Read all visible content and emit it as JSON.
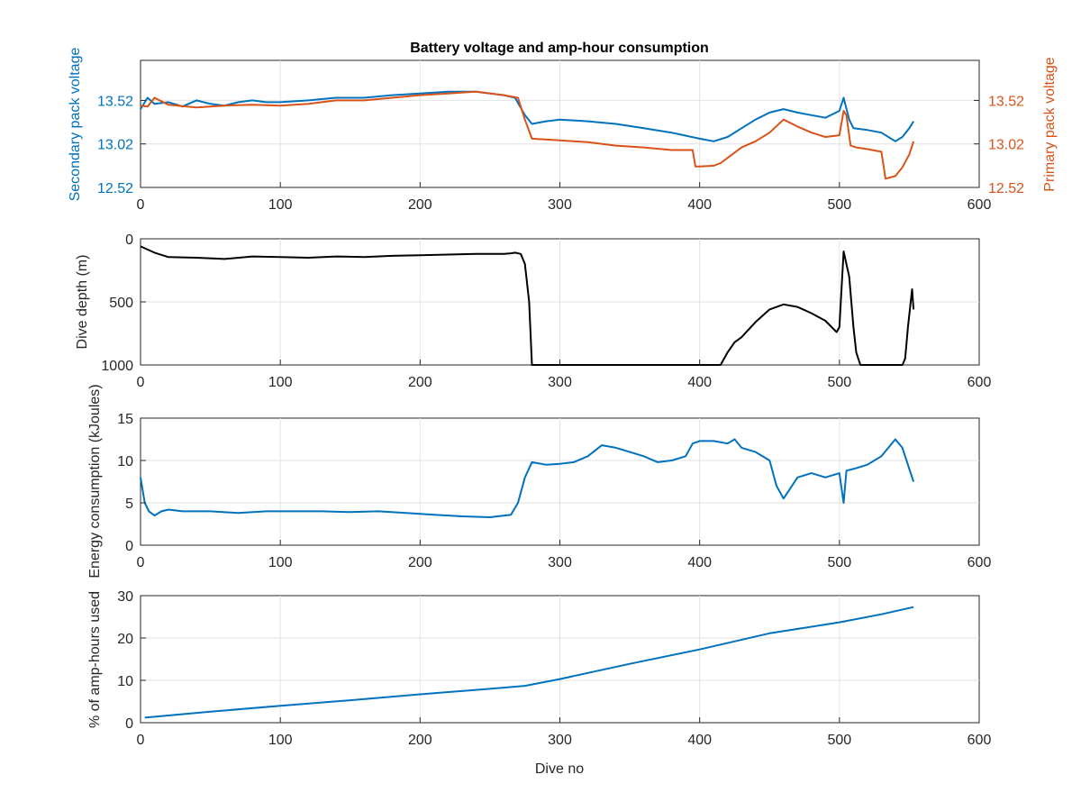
{
  "chart_data": [
    {
      "type": "line",
      "title": "Battery voltage and amp-hour consumption",
      "xlim": [
        0,
        600
      ],
      "xticks": [
        0,
        100,
        200,
        300,
        400,
        500,
        600
      ],
      "ylabel_left": "Secondary pack voltage",
      "ylabel_right": "Primary pack voltage",
      "ylim": [
        12.52,
        13.98
      ],
      "yticks_left": [
        12.52,
        13.02,
        13.52
      ],
      "yticks_right": [
        12.52,
        13.02,
        13.52
      ],
      "grid": true,
      "colors": {
        "secondary": "#0072bd",
        "primary": "#d95319"
      },
      "series": [
        {
          "name": "Secondary pack voltage",
          "axis": "left",
          "x": [
            0,
            5,
            10,
            20,
            30,
            40,
            50,
            60,
            70,
            80,
            90,
            100,
            120,
            140,
            160,
            180,
            200,
            220,
            240,
            260,
            268,
            275,
            280,
            290,
            300,
            320,
            340,
            360,
            380,
            400,
            410,
            420,
            430,
            440,
            450,
            460,
            470,
            480,
            490,
            500,
            503,
            507,
            510,
            520,
            530,
            540,
            545,
            550,
            553
          ],
          "y": [
            13.42,
            13.55,
            13.48,
            13.5,
            13.45,
            13.52,
            13.48,
            13.46,
            13.5,
            13.52,
            13.5,
            13.5,
            13.52,
            13.55,
            13.55,
            13.58,
            13.6,
            13.62,
            13.62,
            13.58,
            13.55,
            13.35,
            13.25,
            13.28,
            13.3,
            13.28,
            13.25,
            13.2,
            13.15,
            13.08,
            13.05,
            13.1,
            13.2,
            13.3,
            13.38,
            13.42,
            13.38,
            13.35,
            13.32,
            13.4,
            13.55,
            13.3,
            13.2,
            13.18,
            13.15,
            13.05,
            13.1,
            13.2,
            13.28
          ]
        },
        {
          "name": "Primary pack voltage",
          "axis": "right",
          "x": [
            0,
            5,
            10,
            20,
            40,
            60,
            80,
            100,
            120,
            140,
            160,
            180,
            200,
            220,
            240,
            260,
            270,
            275,
            280,
            300,
            320,
            340,
            360,
            380,
            395,
            397,
            400,
            410,
            415,
            420,
            430,
            440,
            450,
            460,
            470,
            480,
            490,
            500,
            503,
            505,
            508,
            512,
            520,
            530,
            533,
            540,
            545,
            550,
            553
          ],
          "y": [
            13.46,
            13.45,
            13.55,
            13.47,
            13.44,
            13.46,
            13.47,
            13.46,
            13.48,
            13.52,
            13.52,
            13.55,
            13.58,
            13.6,
            13.62,
            13.58,
            13.55,
            13.3,
            13.08,
            13.06,
            13.04,
            13.0,
            12.98,
            12.95,
            12.95,
            12.76,
            12.76,
            12.77,
            12.8,
            12.86,
            12.98,
            13.05,
            13.15,
            13.3,
            13.22,
            13.15,
            13.1,
            13.12,
            13.4,
            13.35,
            13.0,
            12.98,
            12.96,
            12.93,
            12.62,
            12.65,
            12.75,
            12.9,
            13.05
          ]
        }
      ]
    },
    {
      "type": "line",
      "xlim": [
        0,
        600
      ],
      "xticks": [
        0,
        100,
        200,
        300,
        400,
        500,
        600
      ],
      "ylabel": "Dive depth (m)",
      "ylim": [
        0,
        1000
      ],
      "yticks": [
        0,
        500,
        1000
      ],
      "y_reversed": true,
      "grid": true,
      "colors": {
        "line": "#000000"
      },
      "series": [
        {
          "x": [
            0,
            10,
            20,
            40,
            60,
            80,
            100,
            120,
            140,
            160,
            180,
            200,
            220,
            240,
            260,
            265,
            268,
            272,
            275,
            278,
            280,
            290,
            300,
            350,
            400,
            415,
            420,
            425,
            430,
            440,
            450,
            460,
            470,
            480,
            490,
            498,
            500,
            503,
            507,
            510,
            512,
            515,
            520,
            530,
            540,
            545,
            547,
            549,
            552,
            553
          ],
          "y": [
            60,
            110,
            145,
            150,
            160,
            140,
            145,
            150,
            140,
            145,
            135,
            130,
            125,
            120,
            120,
            115,
            110,
            120,
            200,
            500,
            1000,
            1000,
            1000,
            1000,
            1000,
            1000,
            900,
            820,
            780,
            660,
            560,
            520,
            540,
            590,
            650,
            740,
            700,
            100,
            300,
            700,
            900,
            1000,
            1000,
            1000,
            1000,
            1000,
            950,
            700,
            400,
            560
          ]
        }
      ]
    },
    {
      "type": "line",
      "xlim": [
        0,
        600
      ],
      "xticks": [
        0,
        100,
        200,
        300,
        400,
        500,
        600
      ],
      "ylabel": "Energy consumption (kJoules)",
      "ylim": [
        0,
        15
      ],
      "yticks": [
        0,
        5,
        10,
        15
      ],
      "grid": true,
      "colors": {
        "line": "#0072bd"
      },
      "series": [
        {
          "x": [
            0,
            3,
            6,
            10,
            15,
            20,
            30,
            50,
            70,
            90,
            110,
            130,
            150,
            170,
            190,
            210,
            230,
            250,
            265,
            270,
            275,
            280,
            290,
            300,
            310,
            320,
            330,
            340,
            350,
            360,
            370,
            380,
            390,
            395,
            400,
            410,
            420,
            425,
            430,
            440,
            450,
            455,
            460,
            470,
            480,
            490,
            500,
            503,
            505,
            510,
            520,
            530,
            540,
            545,
            550,
            553
          ],
          "y": [
            8,
            5,
            4,
            3.5,
            4,
            4.2,
            4,
            4,
            3.8,
            4,
            4,
            4,
            3.9,
            4,
            3.8,
            3.6,
            3.4,
            3.3,
            3.6,
            5,
            8,
            9.8,
            9.5,
            9.6,
            9.8,
            10.5,
            11.8,
            11.5,
            11,
            10.5,
            9.8,
            10,
            10.5,
            12,
            12.3,
            12.3,
            12,
            12.5,
            11.5,
            11,
            10,
            7,
            5.5,
            8,
            8.5,
            8,
            8.5,
            5,
            8.8,
            9,
            9.5,
            10.5,
            12.5,
            11.5,
            9,
            7.5
          ]
        }
      ]
    },
    {
      "type": "line",
      "xlim": [
        0,
        600
      ],
      "xticks": [
        0,
        100,
        200,
        300,
        400,
        500,
        600
      ],
      "xlabel": "Dive no",
      "ylabel": "% of amp-hours used",
      "ylim": [
        0,
        30
      ],
      "yticks": [
        0,
        10,
        20,
        30
      ],
      "grid": true,
      "colors": {
        "line": "#0072bd"
      },
      "series": [
        {
          "x": [
            3,
            50,
            100,
            150,
            200,
            250,
            275,
            300,
            350,
            400,
            450,
            500,
            530,
            553
          ],
          "y": [
            1.2,
            2.6,
            4,
            5.3,
            6.7,
            8,
            8.7,
            10.3,
            13.9,
            17.3,
            21.1,
            23.7,
            25.6,
            27.3
          ]
        }
      ]
    }
  ]
}
